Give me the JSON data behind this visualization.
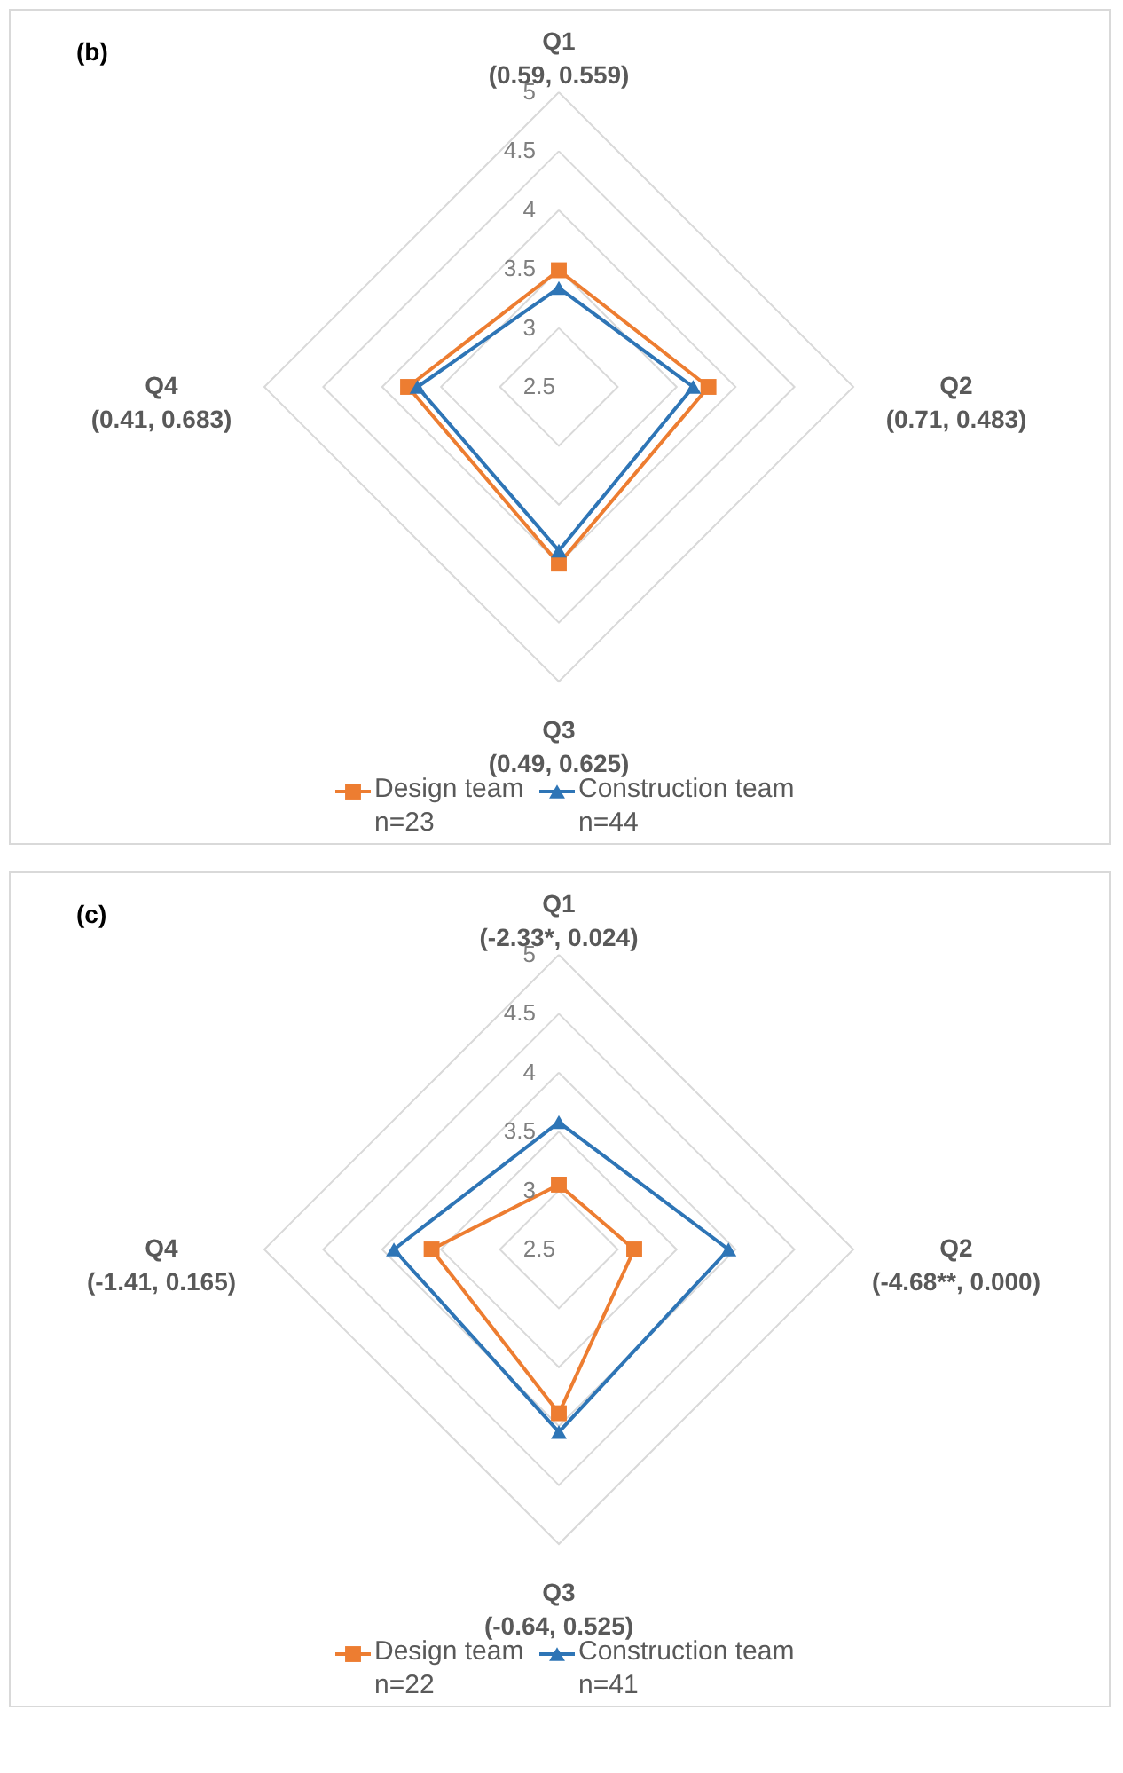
{
  "chart_data": [
    {
      "type": "radar",
      "title": "(b)",
      "categories": [
        "Q1\n(0.59, 0.559)",
        "Q2\n(0.71, 0.483)",
        "Q3\n(0.49, 0.625)",
        "Q4\n(0.41, 0.683)"
      ],
      "ylim": [
        2.5,
        5
      ],
      "yticks": [
        2.5,
        3,
        3.5,
        4,
        4.5,
        5
      ],
      "grid": true,
      "legend": "bottom",
      "series": [
        {
          "name": "Design team\nn=23",
          "color": "#ed7d31",
          "marker": "square",
          "values": [
            3.49,
            3.77,
            4.0,
            3.78
          ]
        },
        {
          "name": "Construction team\nn=44",
          "color": "#2e75b6",
          "marker": "triangle",
          "values": [
            3.34,
            3.64,
            3.89,
            3.7
          ]
        }
      ]
    },
    {
      "type": "radar",
      "title": "(c)",
      "categories": [
        "Q1\n(-2.33*, 0.024)",
        "Q2\n(-4.68**, 0.000)",
        "Q3\n(-0.64, 0.525)",
        "Q4\n(-1.41, 0.165)"
      ],
      "ylim": [
        2.5,
        5
      ],
      "yticks": [
        2.5,
        3,
        3.5,
        4,
        4.5,
        5
      ],
      "grid": true,
      "legend": "bottom",
      "series": [
        {
          "name": "Design team\nn=22",
          "color": "#ed7d31",
          "marker": "square",
          "values": [
            3.05,
            3.14,
            3.89,
            3.58
          ]
        },
        {
          "name": "Construction team\nn=41",
          "color": "#2e75b6",
          "marker": "triangle",
          "values": [
            3.58,
            3.94,
            4.05,
            3.9
          ]
        }
      ]
    }
  ]
}
